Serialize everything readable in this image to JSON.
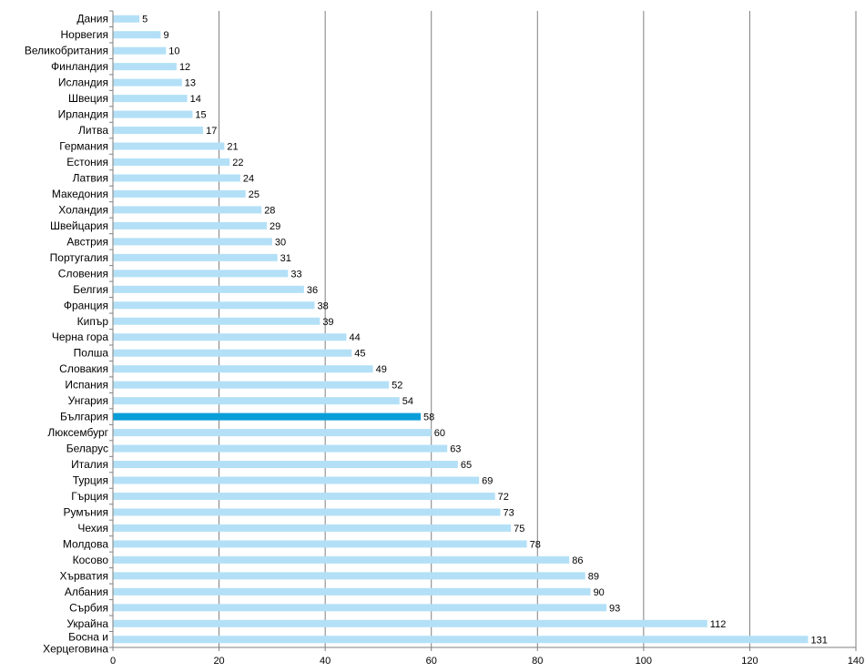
{
  "chart_data": {
    "type": "bar",
    "orientation": "horizontal",
    "categories": [
      "Дания",
      "Норвегия",
      "Великобритания",
      "Финландия",
      "Исландия",
      "Швеция",
      "Ирландия",
      "Литва",
      "Германия",
      "Естония",
      "Латвия",
      "Македония",
      "Холандия",
      "Швейцария",
      "Австрия",
      "Португалия",
      "Словения",
      "Белгия",
      "Франция",
      "Кипър",
      "Черна гора",
      "Полша",
      "Словакия",
      "Испания",
      "Унгария",
      "България",
      "Люксембург",
      "Беларус",
      "Италия",
      "Турция",
      "Гърция",
      "Румъния",
      "Чехия",
      "Молдова",
      "Косово",
      "Хърватия",
      "Албания",
      "Сърбия",
      "Украйна",
      "Босна и Херцеговина"
    ],
    "values": [
      5,
      9,
      10,
      12,
      13,
      14,
      15,
      17,
      21,
      22,
      24,
      25,
      28,
      29,
      30,
      31,
      33,
      36,
      38,
      39,
      44,
      45,
      49,
      52,
      54,
      58,
      60,
      63,
      65,
      69,
      72,
      73,
      75,
      78,
      86,
      89,
      90,
      93,
      112,
      131
    ],
    "highlight_category": "България",
    "xlim": [
      0,
      140
    ],
    "xticks": [
      0,
      20,
      40,
      60,
      80,
      100,
      120,
      140
    ],
    "grid": "vertical",
    "title": "",
    "xlabel": "",
    "ylabel": "",
    "colors": {
      "bar": "#b3e0f7",
      "highlight": "#0a9ed9",
      "grid": "#7f7f7f",
      "axis": "#7f7f7f"
    }
  }
}
